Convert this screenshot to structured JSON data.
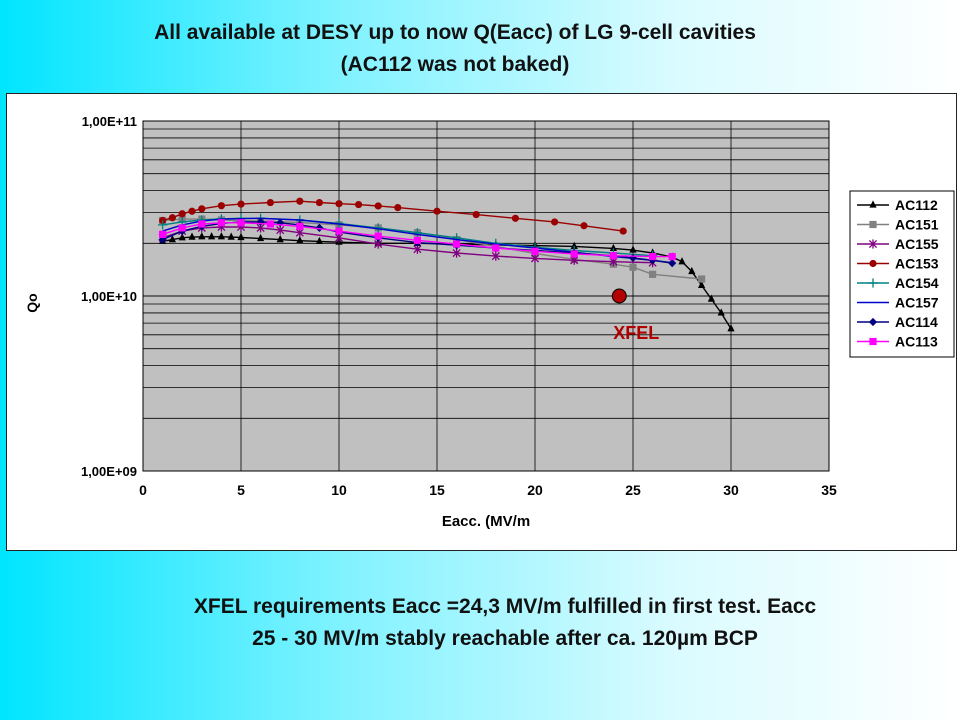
{
  "slide": {
    "title_line1": "All available at DESY up to now Q(Eacc) of LG 9-cell cavities",
    "title_line2": "(AC112 was not baked)",
    "footer_line1": "XFEL requirements Eacc =24,3 MV/m fulfilled in first test.  Eacc",
    "footer_line2": "25 - 30 MV/m stably reachable after ca. 120µm BCP"
  },
  "chart_data": {
    "type": "scatter",
    "xlabel": "Eacc. (MV/m",
    "ylabel": "Qo",
    "xlim": [
      0,
      35
    ],
    "ylim": [
      1000000000,
      100000000000
    ],
    "y_scale": "log",
    "x_ticks": [
      "0",
      "5",
      "10",
      "15",
      "20",
      "25",
      "30",
      "35"
    ],
    "y_ticks": [
      "1,00E+09",
      "1,00E+10",
      "1,00E+11"
    ],
    "grid": true,
    "legend_position": "right",
    "annotation": {
      "label": "XFEL",
      "x": 24.3,
      "y": 10000000000,
      "color": "#b00000"
    },
    "series": [
      {
        "name": "AC112",
        "color": "#000000",
        "marker": "triangle",
        "x": [
          1,
          1.5,
          2,
          2.5,
          3,
          3.5,
          4,
          4.5,
          5,
          6,
          7,
          8,
          9,
          10,
          12,
          14,
          16,
          18,
          20,
          22,
          24,
          25,
          26,
          27,
          27.5,
          28,
          28.5,
          29,
          29.5,
          30
        ],
        "y": [
          20500000000.0,
          21000000000.0,
          21500000000.0,
          21700000000.0,
          21800000000.0,
          21800000000.0,
          21800000000.0,
          21700000000.0,
          21600000000.0,
          21300000000.0,
          21000000000.0,
          20700000000.0,
          20500000000.0,
          20300000000.0,
          20000000000.0,
          20000000000.0,
          19800000000.0,
          19600000000.0,
          19400000000.0,
          19200000000.0,
          18700000000.0,
          18300000000.0,
          17600000000.0,
          16700000000.0,
          15700000000.0,
          13800000000.0,
          11500000000.0,
          9600000000.0,
          8000000000.0,
          6500000000.0
        ]
      },
      {
        "name": "AC151",
        "color": "#808080",
        "marker": "square",
        "x": [
          1,
          2,
          3,
          4,
          6,
          8,
          10,
          12,
          14,
          16,
          18,
          20,
          22,
          24,
          25,
          26,
          28.5
        ],
        "y": [
          27000000000.0,
          27500000000.0,
          27500000000.0,
          27200000000.0,
          26800000000.0,
          26300000000.0,
          25500000000.0,
          24500000000.0,
          23000000000.0,
          21000000000.0,
          19200000000.0,
          17500000000.0,
          16200000000.0,
          15200000000.0,
          14600000000.0,
          13300000000.0,
          12500000000.0
        ]
      },
      {
        "name": "AC155",
        "color": "#800080",
        "marker": "x",
        "x": [
          1,
          2,
          3,
          4,
          5,
          6,
          7,
          8,
          10,
          12,
          14,
          16,
          18,
          20,
          22,
          24,
          26
        ],
        "y": [
          21500000000.0,
          23500000000.0,
          24500000000.0,
          24800000000.0,
          24800000000.0,
          24500000000.0,
          23800000000.0,
          23000000000.0,
          21500000000.0,
          19800000000.0,
          18500000000.0,
          17600000000.0,
          16900000000.0,
          16400000000.0,
          16000000000.0,
          15700000000.0,
          15500000000.0
        ]
      },
      {
        "name": "AC153",
        "color": "#9b0000",
        "marker": "circle",
        "x": [
          1,
          1.5,
          2,
          2.5,
          3,
          4,
          5,
          6.5,
          8,
          9,
          10,
          11,
          12,
          13,
          15,
          17,
          19,
          21,
          22.5,
          24.5
        ],
        "y": [
          27000000000.0,
          28000000000.0,
          29500000000.0,
          30500000000.0,
          31500000000.0,
          32800000000.0,
          33500000000.0,
          34200000000.0,
          34800000000.0,
          34200000000.0,
          33700000000.0,
          33300000000.0,
          32700000000.0,
          32000000000.0,
          30500000000.0,
          29200000000.0,
          27800000000.0,
          26500000000.0,
          25200000000.0,
          23500000000.0
        ]
      },
      {
        "name": "AC154",
        "color": "#008080",
        "marker": "plus",
        "x": [
          1,
          2,
          3,
          4,
          5,
          6,
          8,
          10,
          12,
          14,
          16,
          18,
          20,
          22,
          24,
          26
        ],
        "y": [
          25500000000.0,
          26500000000.0,
          27200000000.0,
          27600000000.0,
          27800000000.0,
          27800000000.0,
          27200000000.0,
          26000000000.0,
          24500000000.0,
          23000000000.0,
          21500000000.0,
          20000000000.0,
          19000000000.0,
          18200000000.0,
          17600000000.0,
          17000000000.0
        ]
      },
      {
        "name": "AC157",
        "color": "#0000cc",
        "marker": "none",
        "x": [
          1,
          2,
          3,
          4,
          6,
          8,
          10,
          12,
          14,
          16,
          18,
          20,
          22,
          24,
          26,
          27
        ],
        "y": [
          23500000000.0,
          25500000000.0,
          26800000000.0,
          27500000000.0,
          27800000000.0,
          27200000000.0,
          25800000000.0,
          24200000000.0,
          22500000000.0,
          21000000000.0,
          19800000000.0,
          18800000000.0,
          17800000000.0,
          16800000000.0,
          16000000000.0,
          15500000000.0
        ]
      },
      {
        "name": "AC114",
        "color": "#000080",
        "marker": "diamond",
        "x": [
          1,
          2,
          3,
          4,
          5,
          6,
          7,
          8,
          9,
          10,
          12,
          14,
          16,
          18,
          20,
          22,
          24,
          25,
          26,
          27
        ],
        "y": [
          21000000000.0,
          23500000000.0,
          25000000000.0,
          26000000000.0,
          26500000000.0,
          26500000000.0,
          26200000000.0,
          25500000000.0,
          24500000000.0,
          23200000000.0,
          21500000000.0,
          20200000000.0,
          19500000000.0,
          18800000000.0,
          18200000000.0,
          17600000000.0,
          17000000000.0,
          16500000000.0,
          16000000000.0,
          15400000000.0
        ]
      },
      {
        "name": "AC113",
        "color": "#ff00ff",
        "marker": "square",
        "x": [
          1,
          2,
          3,
          4,
          5,
          6.5,
          8,
          10,
          12,
          14,
          16,
          18,
          20,
          22,
          24,
          26,
          27
        ],
        "y": [
          22500000000.0,
          24500000000.0,
          25800000000.0,
          26200000000.0,
          26200000000.0,
          25800000000.0,
          25000000000.0,
          23500000000.0,
          22000000000.0,
          20800000000.0,
          19800000000.0,
          18800000000.0,
          18000000000.0,
          17400000000.0,
          17000000000.0,
          16800000000.0,
          16800000000.0
        ]
      }
    ]
  }
}
